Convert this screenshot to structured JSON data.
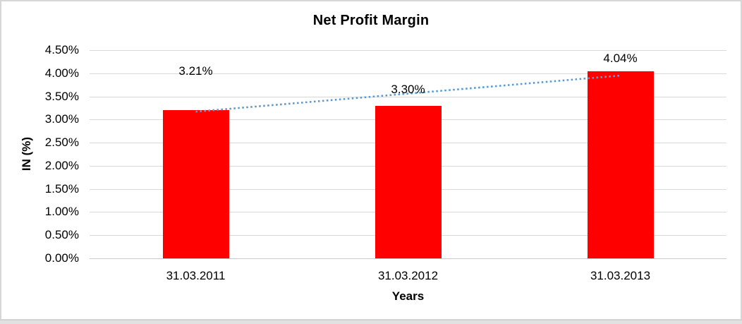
{
  "window": {
    "frame_border_color": "#d6d6d6",
    "background_color": "#ffffff",
    "bottom_strip_color": "#e1e1e1"
  },
  "chart_data": {
    "type": "bar",
    "title": "Net Profit Margin",
    "xlabel": "Years",
    "ylabel": "IN (%)",
    "categories": [
      "31.03.2011",
      "31.03.2012",
      "31.03.2013"
    ],
    "values": [
      3.21,
      3.3,
      4.04
    ],
    "data_labels": [
      "3.21%",
      "3.30%",
      "4.04%"
    ],
    "ylim": [
      0,
      4.5
    ],
    "ytick_step": 0.5,
    "yticks": [
      {
        "value": 4.5,
        "label": "4.50%"
      },
      {
        "value": 4.0,
        "label": "4.00%"
      },
      {
        "value": 3.5,
        "label": "3.50%"
      },
      {
        "value": 3.0,
        "label": "3.00%"
      },
      {
        "value": 2.5,
        "label": "2.50%"
      },
      {
        "value": 2.0,
        "label": "2.00%"
      },
      {
        "value": 1.5,
        "label": "1.50%"
      },
      {
        "value": 1.0,
        "label": "1.00%"
      },
      {
        "value": 0.5,
        "label": "0.50%"
      },
      {
        "value": 0.0,
        "label": "0.00%"
      }
    ],
    "grid": true,
    "legend": "none",
    "bar_color": "#ff0000",
    "gridline_color": "#d9d9d9",
    "text_color": "#000000",
    "trendline": {
      "kind": "linear",
      "style": "dotted",
      "color": "#5b9bd5",
      "start_value": 3.17,
      "end_value": 3.95
    }
  }
}
